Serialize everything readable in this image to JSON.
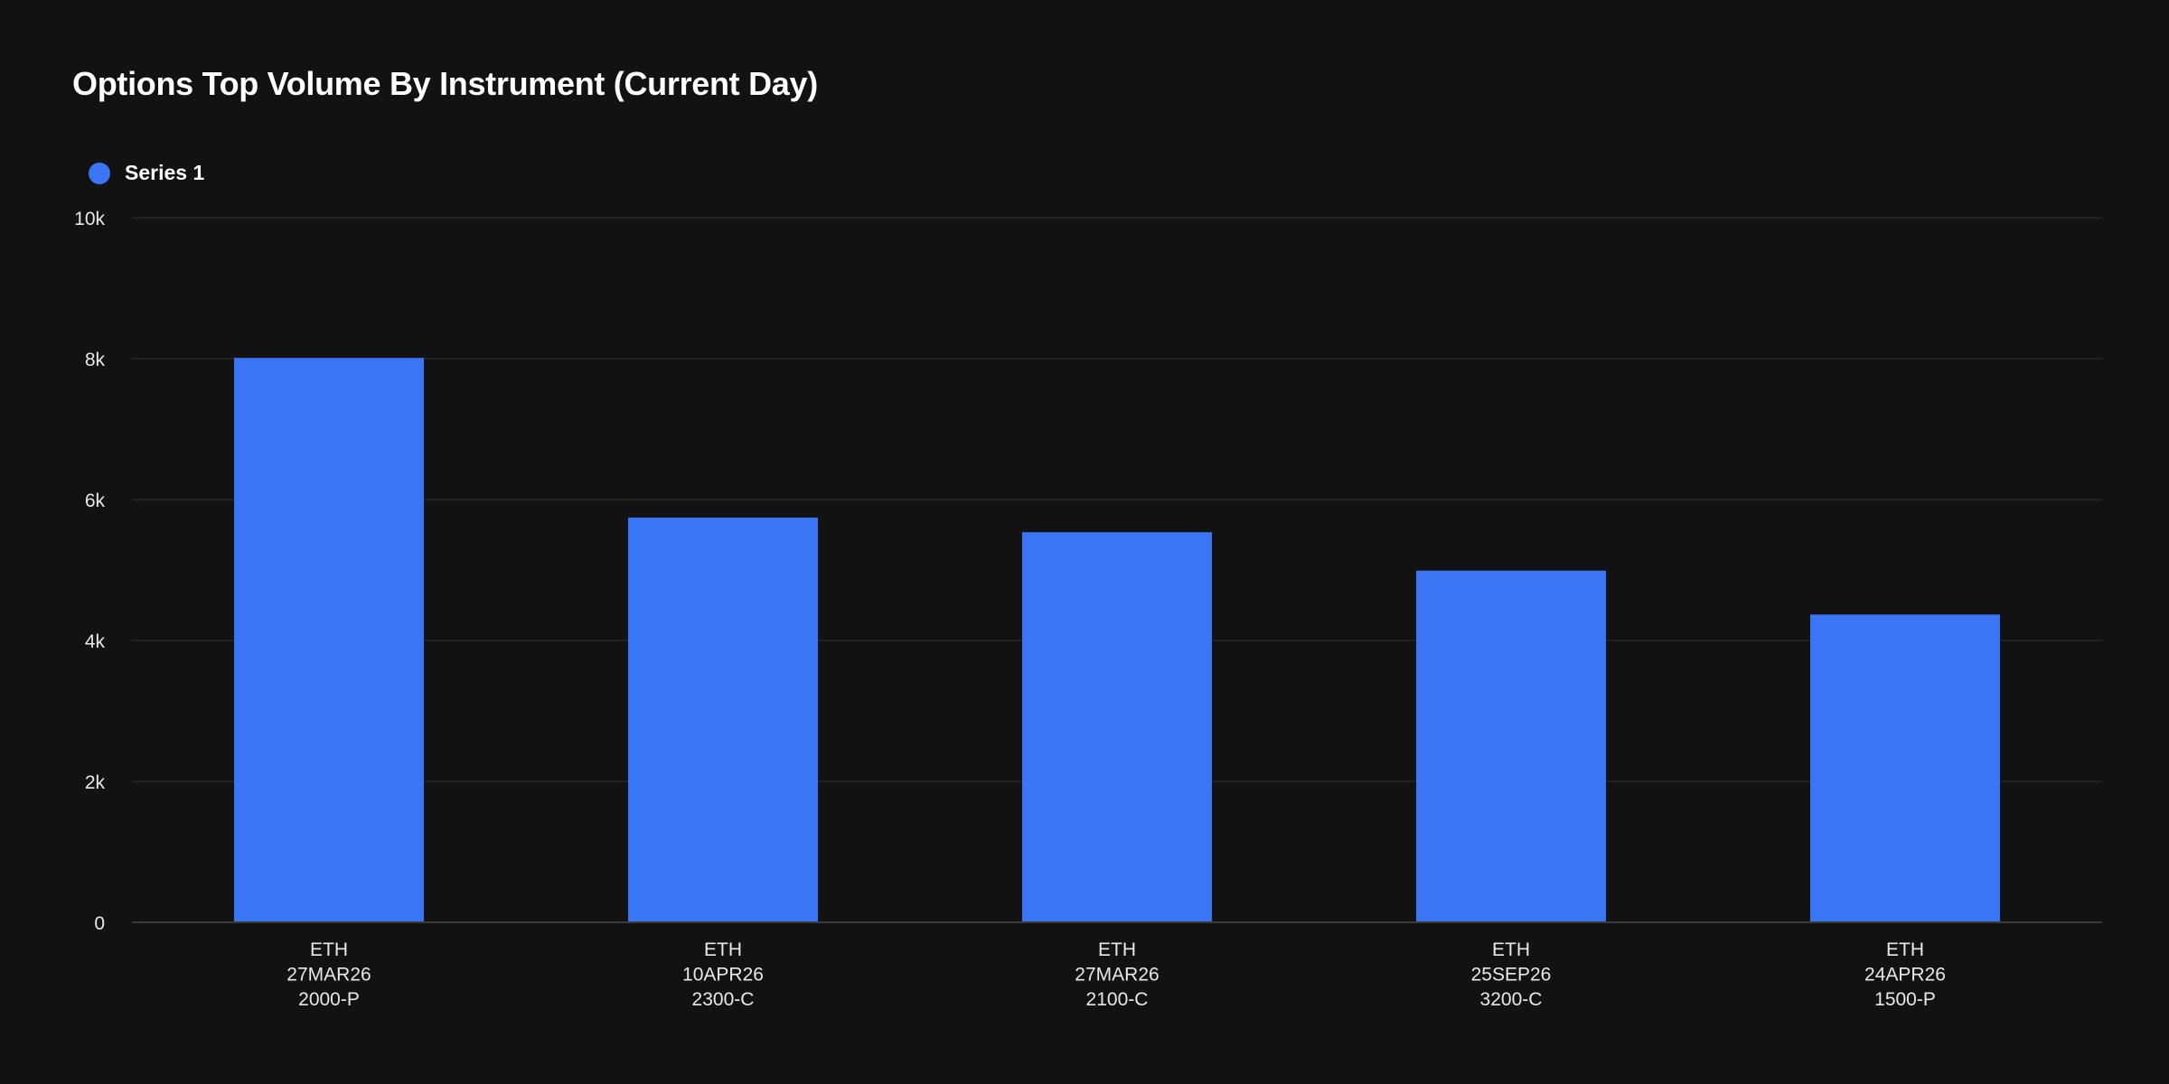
{
  "chart_data": {
    "type": "bar",
    "title": "Options Top Volume By Instrument (Current Day)",
    "xlabel": "",
    "ylabel": "",
    "categories": [
      [
        "ETH",
        "27MAR26",
        "2000-P"
      ],
      [
        "ETH",
        "10APR26",
        "2300-C"
      ],
      [
        "ETH",
        "27MAR26",
        "2100-C"
      ],
      [
        "ETH",
        "25SEP26",
        "3200-C"
      ],
      [
        "ETH",
        "24APR26",
        "1500-P"
      ]
    ],
    "series": [
      {
        "name": "Series 1",
        "color": "#3975f5",
        "values": [
          8010,
          5744,
          5536,
          4991,
          4368
        ]
      }
    ],
    "ylim": [
      0,
      10000
    ],
    "yticks": [
      0,
      2000,
      4000,
      6000,
      8000,
      10000
    ],
    "ytick_labels": [
      "0",
      "2k",
      "4k",
      "6k",
      "8k",
      "10k"
    ],
    "grid": true,
    "legend_position": "top-left"
  }
}
